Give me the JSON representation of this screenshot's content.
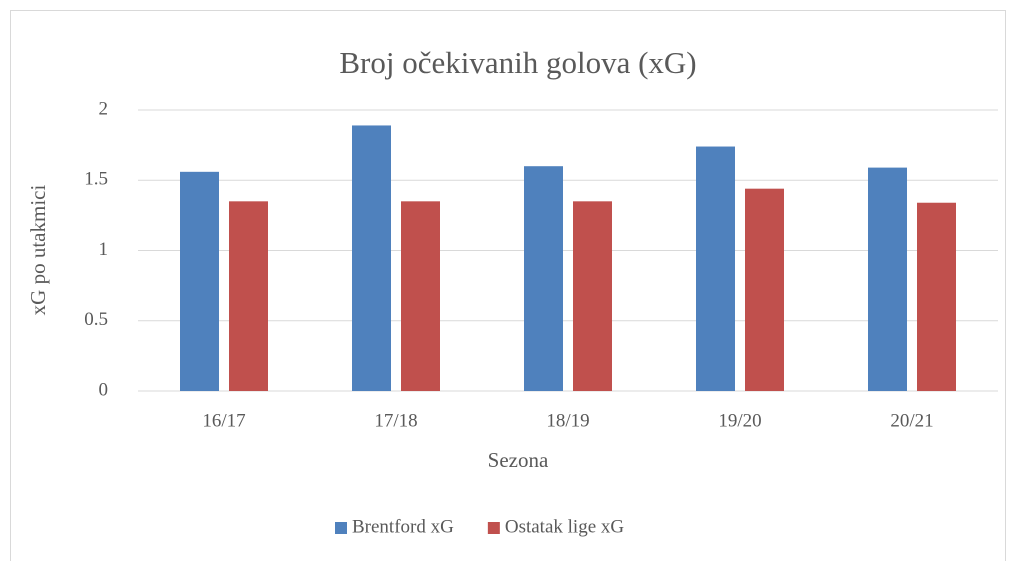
{
  "chart_data": {
    "type": "bar",
    "title": "Broj očekivanih golova (xG)",
    "x_label": "Sezona",
    "y_label": "xG po utakmici",
    "categories": [
      "16/17",
      "17/18",
      "18/19",
      "19/20",
      "20/21"
    ],
    "series": [
      {
        "name": "Brentford xG",
        "color": "#4f81bd",
        "values": [
          1.56,
          1.89,
          1.6,
          1.74,
          1.59
        ]
      },
      {
        "name": "Ostatak lige xG",
        "color": "#c0504d",
        "values": [
          1.35,
          1.35,
          1.35,
          1.44,
          1.34
        ]
      }
    ],
    "ylim": [
      0,
      2
    ],
    "yticks": [
      0,
      0.5,
      1,
      1.5,
      2
    ],
    "grid": true,
    "legend": "bottom"
  }
}
